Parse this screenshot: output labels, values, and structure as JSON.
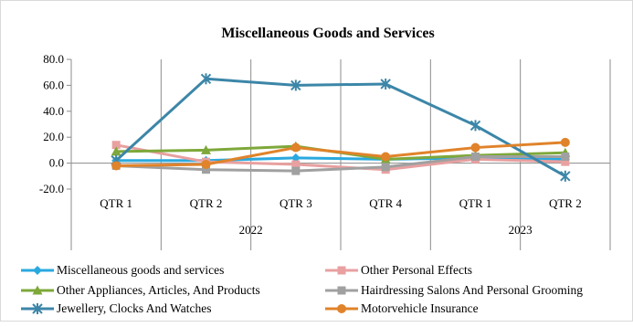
{
  "chart_data": {
    "type": "line",
    "title": "Miscellaneous Goods and Services",
    "categories": [
      "QTR 1",
      "QTR 2",
      "QTR 3",
      "QTR 4",
      "QTR 1",
      "QTR 2"
    ],
    "category_groups": [
      {
        "label": "2022",
        "span": 4
      },
      {
        "label": "2023",
        "span": 2
      }
    ],
    "ylim": [
      -20,
      80
    ],
    "yticks": [
      "80.0",
      "60.0",
      "40.0",
      "20.0",
      "0.0",
      "-20.0"
    ],
    "ytick_values": [
      80,
      60,
      40,
      20,
      0,
      -20
    ],
    "grid": "vertical separators between categories",
    "legend_position": "bottom",
    "series": [
      {
        "name": "Miscellaneous goods and services",
        "color": "#2aa9df",
        "marker": "diamond",
        "values": [
          2,
          2,
          4,
          3,
          4,
          3
        ]
      },
      {
        "name": "Other Personal Effects",
        "color": "#e8a0a0",
        "marker": "square",
        "values": [
          14,
          1,
          -1,
          -5,
          3,
          1
        ]
      },
      {
        "name": "Other Appliances, Articles, And Products",
        "color": "#7ea83a",
        "marker": "triangle",
        "values": [
          9,
          10,
          13,
          3,
          6,
          8
        ]
      },
      {
        "name": "Hairdressing Salons And Personal Grooming",
        "color": "#a0a0a0",
        "marker": "square",
        "values": [
          -2,
          -5,
          -6,
          -3,
          5,
          5
        ]
      },
      {
        "name": "Jewellery, Clocks And Watches",
        "color": "#3c86a8",
        "marker": "star",
        "values": [
          2,
          65,
          60,
          61,
          29,
          -10
        ]
      },
      {
        "name": "Motorvehicle Insurance",
        "color": "#e0832a",
        "marker": "circle",
        "values": [
          -2,
          -1,
          12,
          5,
          12,
          16
        ]
      }
    ]
  }
}
